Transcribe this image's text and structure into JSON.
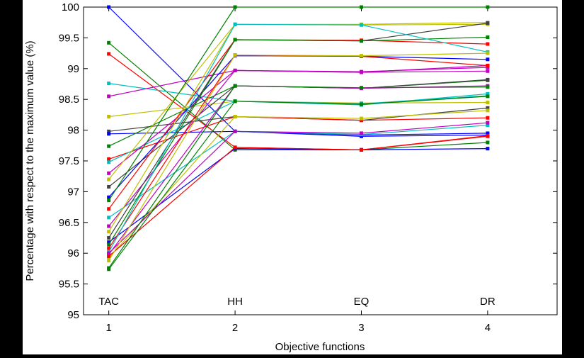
{
  "chart_data": {
    "type": "line",
    "title": "",
    "xlabel": "Objective functions",
    "ylabel": "Percentage with respect to the maximum value (%)",
    "x": [
      1,
      2,
      3,
      4
    ],
    "xticks": [
      "1",
      "2",
      "3",
      "4"
    ],
    "category_annotations": [
      "TAC",
      "HH",
      "EQ",
      "DR"
    ],
    "xlim": [
      0.8,
      4.55
    ],
    "ylim": [
      95,
      100
    ],
    "yticks": [
      "95",
      "95.5",
      "96",
      "96.5",
      "97",
      "97.5",
      "98",
      "98.5",
      "99",
      "99.5",
      "100"
    ],
    "grid": false,
    "legend": "none",
    "series": [
      {
        "color": "#0000ff",
        "values": [
          100.0,
          97.98,
          97.92,
          97.95
        ]
      },
      {
        "color": "#008000",
        "values": [
          99.42,
          97.68,
          97.68,
          97.8
        ]
      },
      {
        "color": "#ff0000",
        "values": [
          99.24,
          97.72,
          97.68,
          97.9
        ]
      },
      {
        "color": "#00bfbf",
        "values": [
          98.76,
          98.47,
          98.41,
          98.59
        ]
      },
      {
        "color": "#bf00bf",
        "values": [
          98.55,
          98.97,
          98.94,
          98.96
        ]
      },
      {
        "color": "#bfbf00",
        "values": [
          98.22,
          98.47,
          98.44,
          98.45
        ]
      },
      {
        "color": "#404040",
        "values": [
          97.98,
          98.22,
          98.16,
          98.36
        ]
      },
      {
        "color": "#0000ff",
        "values": [
          97.94,
          97.98,
          97.9,
          97.92
        ]
      },
      {
        "color": "#008000",
        "values": [
          97.74,
          98.72,
          98.68,
          98.81
        ]
      },
      {
        "color": "#ff0000",
        "values": [
          97.53,
          98.22,
          98.16,
          98.2
        ]
      },
      {
        "color": "#00bfbf",
        "values": [
          97.48,
          98.47,
          98.43,
          98.56
        ]
      },
      {
        "color": "#bf00bf",
        "values": [
          97.3,
          98.97,
          98.95,
          99.02
        ]
      },
      {
        "color": "#bfbf00",
        "values": [
          97.2,
          99.72,
          99.71,
          99.72
        ]
      },
      {
        "color": "#404040",
        "values": [
          97.08,
          98.72,
          98.68,
          98.82
        ]
      },
      {
        "color": "#0000ff",
        "values": [
          96.91,
          99.21,
          99.2,
          99.15
        ]
      },
      {
        "color": "#008000",
        "values": [
          96.86,
          100.0,
          100.0,
          100.0
        ]
      },
      {
        "color": "#ff0000",
        "values": [
          96.72,
          99.47,
          99.46,
          99.4
        ]
      },
      {
        "color": "#00bfbf",
        "values": [
          96.58,
          97.98,
          97.93,
          98.08
        ]
      },
      {
        "color": "#bf00bf",
        "values": [
          96.44,
          98.97,
          98.94,
          99.05
        ]
      },
      {
        "color": "#bfbf00",
        "values": [
          96.35,
          99.72,
          99.72,
          99.75
        ]
      },
      {
        "color": "#404040",
        "values": [
          96.25,
          99.47,
          99.45,
          99.74
        ]
      },
      {
        "color": "#0000ff",
        "values": [
          96.18,
          97.7,
          97.68,
          97.7
        ]
      },
      {
        "color": "#008000",
        "values": [
          96.14,
          99.47,
          99.45,
          99.51
        ]
      },
      {
        "color": "#ff0000",
        "values": [
          96.08,
          99.22,
          99.2,
          99.05
        ]
      },
      {
        "color": "#00bfbf",
        "values": [
          96.02,
          99.72,
          99.71,
          99.27
        ]
      },
      {
        "color": "#bf00bf",
        "values": [
          95.98,
          98.72,
          98.68,
          98.72
        ]
      },
      {
        "color": "#bfbf00",
        "values": [
          95.92,
          98.22,
          98.19,
          98.32
        ]
      },
      {
        "color": "#ff0000",
        "values": [
          95.95,
          97.72,
          97.68,
          97.91
        ]
      },
      {
        "color": "#bf00bf",
        "values": [
          96.0,
          97.98,
          97.95,
          98.12
        ]
      },
      {
        "color": "#bfbf00",
        "values": [
          95.88,
          99.22,
          99.21,
          99.25
        ]
      },
      {
        "color": "#008000",
        "values": [
          95.76,
          98.72,
          98.69,
          98.7
        ]
      },
      {
        "color": "#008000",
        "values": [
          95.74,
          98.47,
          98.42,
          98.55
        ]
      }
    ]
  }
}
